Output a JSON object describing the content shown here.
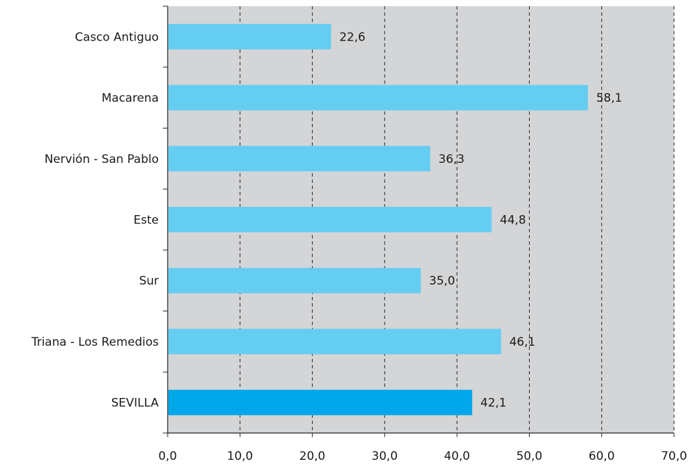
{
  "chart_data": {
    "type": "bar",
    "orientation": "horizontal",
    "title": "",
    "xlabel": "",
    "ylabel": "",
    "categories": [
      "Casco Antiguo",
      "Macarena",
      "Nervión - San Pablo",
      "Este",
      "Sur",
      "Triana - Los Remedios",
      "SEVILLA"
    ],
    "values": [
      22.6,
      58.1,
      36.3,
      44.8,
      35.0,
      46.1,
      42.1
    ],
    "value_labels": [
      "22,6",
      "58,1",
      "36,3",
      "44,8",
      "35,0",
      "46,1",
      "42,1"
    ],
    "xlim": [
      0,
      70
    ],
    "x_ticks": [
      0,
      10,
      20,
      30,
      40,
      50,
      60,
      70
    ],
    "x_tick_labels": [
      "0,0",
      "10,0",
      "20,0",
      "30,0",
      "40,0",
      "50,0",
      "60,0",
      "70,0"
    ],
    "grid": "vertical dashed",
    "plot_background": "#d4d5d7",
    "bar_color": "#66cdf2",
    "highlight_category": "SEVILLA",
    "highlight_color": "#00a8ea"
  }
}
